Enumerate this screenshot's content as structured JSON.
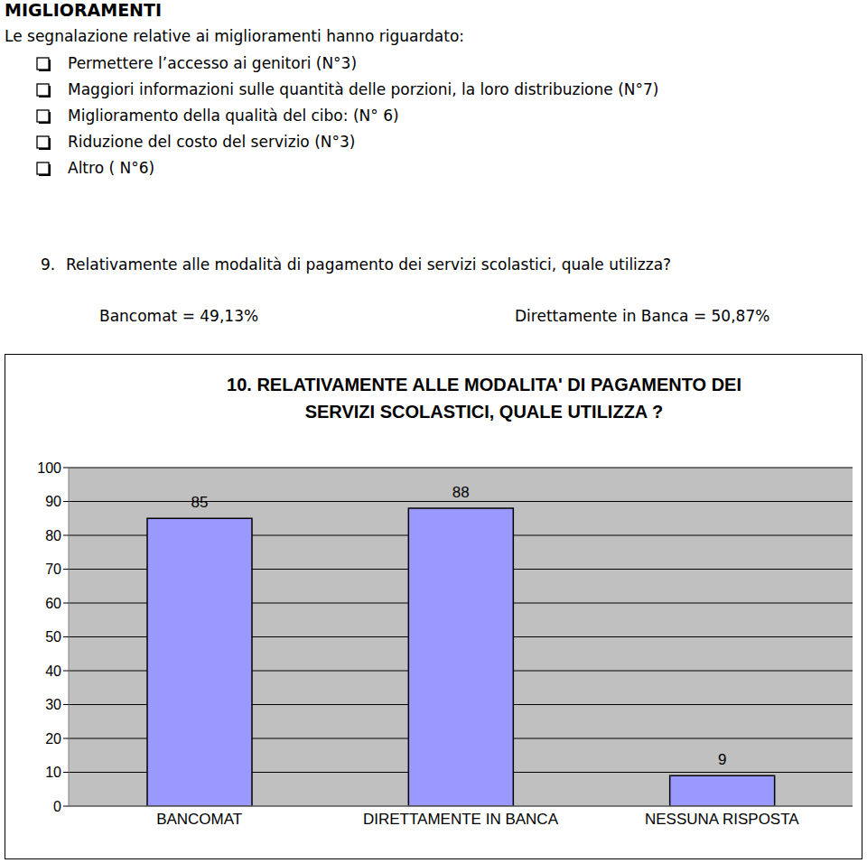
{
  "header": {
    "title": "MIGLIORAMENTI",
    "intro": "Le segnalazione relative ai miglioramenti hanno riguardato:"
  },
  "items": [
    "Permettere l’accesso ai genitori (N°3)",
    "Maggiori informazioni sulle quantità delle porzioni, la loro distribuzione (N°7)",
    "Miglioramento della qualità del cibo: (N° 6)",
    "Riduzione del costo del servizio (N°3)",
    "Altro ( N°6)"
  ],
  "question": {
    "number": "9.",
    "text": "Relativamente alle modalità di pagamento dei servizi scolastici, quale utilizza?"
  },
  "answers": [
    "Bancomat = 49,13%",
    "Direttamente in Banca = 50,87%"
  ],
  "chart_data": {
    "type": "bar",
    "title": "10. RELATIVAMENTE ALLE MODALITA' DI PAGAMENTO DEI SERVIZI SCOLASTICI, QUALE UTILIZZA ?",
    "categories": [
      "BANCOMAT",
      "DIRETTAMENTE IN BANCA",
      "NESSUNA RISPOSTA"
    ],
    "values": [
      85,
      88,
      9
    ],
    "color": "#9999ff",
    "ylim": [
      0,
      100
    ],
    "yticks": [
      0,
      10,
      20,
      30,
      40,
      50,
      60,
      70,
      80,
      90,
      100
    ],
    "grid": true,
    "data_labels": true
  }
}
